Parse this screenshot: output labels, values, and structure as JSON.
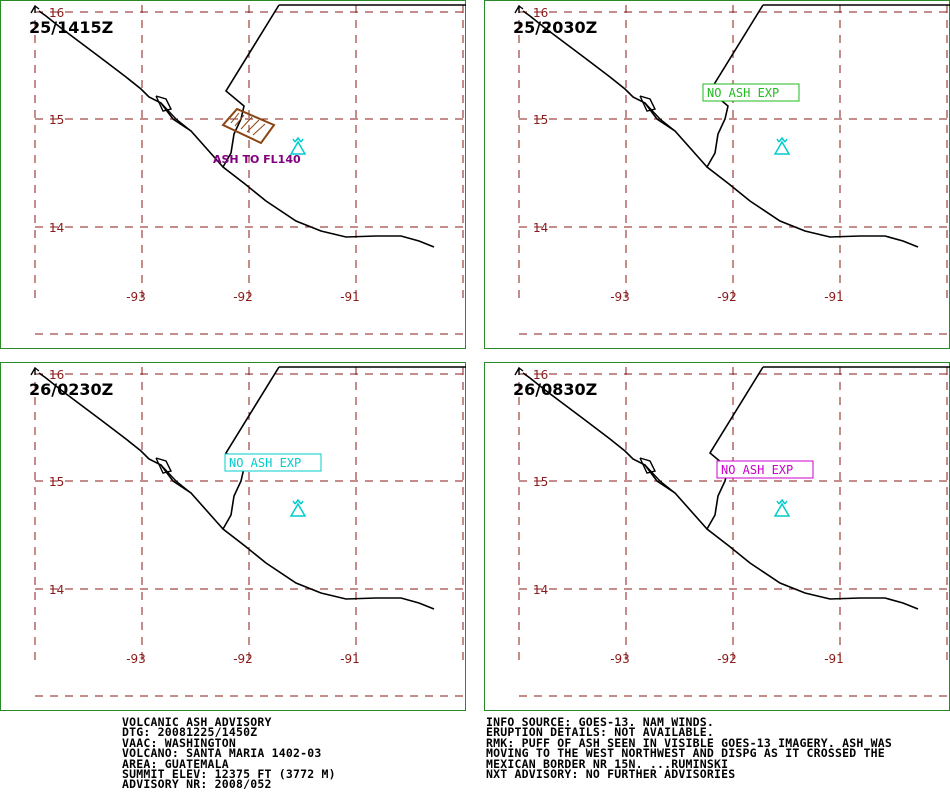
{
  "panels": [
    {
      "time": "25/1415Z",
      "ash": {
        "type": "polygon",
        "label": "ASH TO FL140"
      }
    },
    {
      "time": "25/2030Z",
      "ash": {
        "type": "box",
        "label": "NO ASH EXP",
        "color": "#22bb22"
      }
    },
    {
      "time": "26/0230Z",
      "ash": {
        "type": "box",
        "label": "NO ASH EXP",
        "color": "#00cccc"
      }
    },
    {
      "time": "26/0830Z",
      "ash": {
        "type": "box",
        "label": "NO ASH EXP",
        "color": "#cc00cc"
      }
    }
  ],
  "map": {
    "lat_labels": [
      "16",
      "15",
      "14"
    ],
    "lon_labels": [
      "-93",
      "-92",
      "-91"
    ]
  },
  "colors": {
    "border": "#2a8a2a",
    "grid": "#8b1a1a",
    "coast": "#000000",
    "volcano": "#00cccc",
    "ash_polygon": "#8b4513",
    "ash_label": "#800080"
  },
  "advisory": {
    "left": [
      "VOLCANIC ASH ADVISORY",
      "DTG: 20081225/1450Z",
      "VAAC: WASHINGTON",
      "VOLCANO: SANTA MARIA 1402-03",
      "AREA: GUATEMALA",
      "SUMMIT ELEV: 12375 FT (3772 M)",
      "ADVISORY NR: 2008/052"
    ],
    "right": [
      "INFO SOURCE: GOES-13. NAM WINDS.",
      "ERUPTION DETAILS: NOT AVAILABLE.",
      "RMK: PUFF OF ASH SEEN IN VISIBLE GOES-13 IMAGERY. ASH WAS",
      "MOVING TO THE WEST NORTHWEST AND DISPG AS IT CROSSED THE",
      "MEXICAN BORDER NR 15N. ...RUMINSKI",
      "NXT ADVISORY: NO FURTHER ADVISORIES"
    ]
  }
}
